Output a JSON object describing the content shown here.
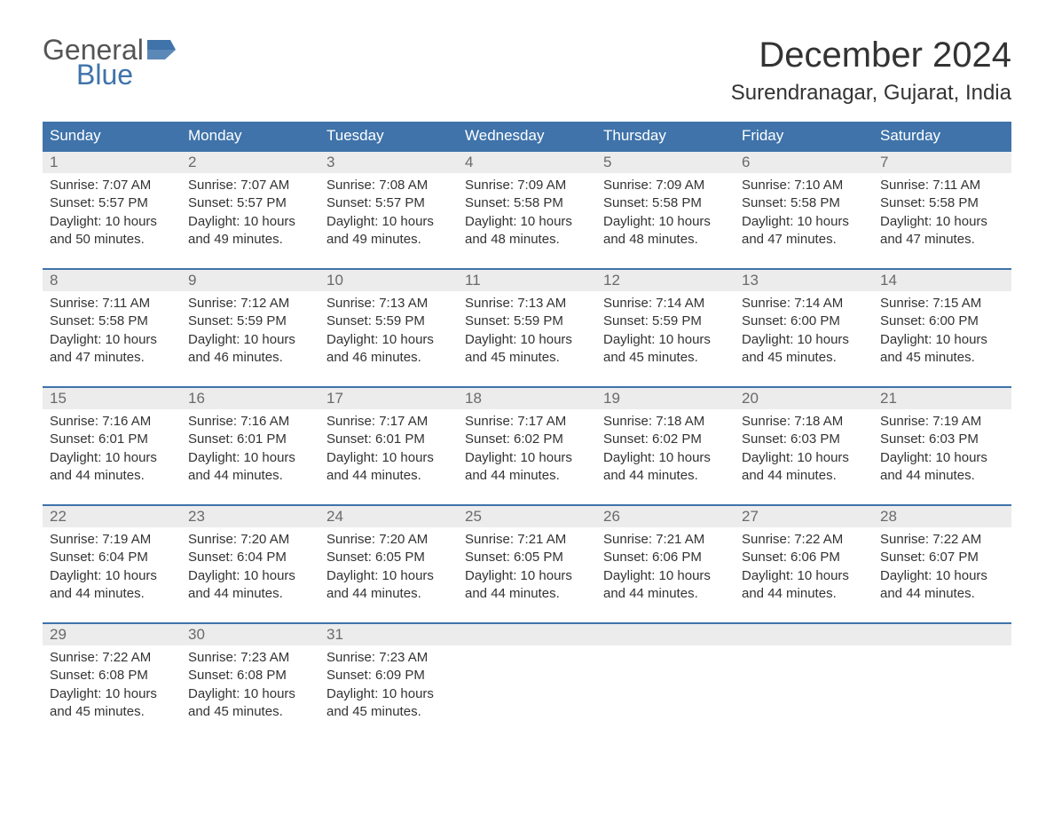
{
  "logo": {
    "text1": "General",
    "text2": "Blue"
  },
  "title": "December 2024",
  "location": "Surendranagar, Gujarat, India",
  "colors": {
    "header_bg": "#3f73aa",
    "header_text": "#ffffff",
    "daynum_bg": "#ececec",
    "daynum_text": "#6a6a6a",
    "body_text": "#333333",
    "rule": "#3f73aa",
    "logo_blue": "#3f73aa",
    "logo_gray": "#555555",
    "page_bg": "#ffffff"
  },
  "day_names": [
    "Sunday",
    "Monday",
    "Tuesday",
    "Wednesday",
    "Thursday",
    "Friday",
    "Saturday"
  ],
  "weeks": [
    [
      {
        "n": "1",
        "sr": "Sunrise: 7:07 AM",
        "ss": "Sunset: 5:57 PM",
        "d1": "Daylight: 10 hours",
        "d2": "and 50 minutes."
      },
      {
        "n": "2",
        "sr": "Sunrise: 7:07 AM",
        "ss": "Sunset: 5:57 PM",
        "d1": "Daylight: 10 hours",
        "d2": "and 49 minutes."
      },
      {
        "n": "3",
        "sr": "Sunrise: 7:08 AM",
        "ss": "Sunset: 5:57 PM",
        "d1": "Daylight: 10 hours",
        "d2": "and 49 minutes."
      },
      {
        "n": "4",
        "sr": "Sunrise: 7:09 AM",
        "ss": "Sunset: 5:58 PM",
        "d1": "Daylight: 10 hours",
        "d2": "and 48 minutes."
      },
      {
        "n": "5",
        "sr": "Sunrise: 7:09 AM",
        "ss": "Sunset: 5:58 PM",
        "d1": "Daylight: 10 hours",
        "d2": "and 48 minutes."
      },
      {
        "n": "6",
        "sr": "Sunrise: 7:10 AM",
        "ss": "Sunset: 5:58 PM",
        "d1": "Daylight: 10 hours",
        "d2": "and 47 minutes."
      },
      {
        "n": "7",
        "sr": "Sunrise: 7:11 AM",
        "ss": "Sunset: 5:58 PM",
        "d1": "Daylight: 10 hours",
        "d2": "and 47 minutes."
      }
    ],
    [
      {
        "n": "8",
        "sr": "Sunrise: 7:11 AM",
        "ss": "Sunset: 5:58 PM",
        "d1": "Daylight: 10 hours",
        "d2": "and 47 minutes."
      },
      {
        "n": "9",
        "sr": "Sunrise: 7:12 AM",
        "ss": "Sunset: 5:59 PM",
        "d1": "Daylight: 10 hours",
        "d2": "and 46 minutes."
      },
      {
        "n": "10",
        "sr": "Sunrise: 7:13 AM",
        "ss": "Sunset: 5:59 PM",
        "d1": "Daylight: 10 hours",
        "d2": "and 46 minutes."
      },
      {
        "n": "11",
        "sr": "Sunrise: 7:13 AM",
        "ss": "Sunset: 5:59 PM",
        "d1": "Daylight: 10 hours",
        "d2": "and 45 minutes."
      },
      {
        "n": "12",
        "sr": "Sunrise: 7:14 AM",
        "ss": "Sunset: 5:59 PM",
        "d1": "Daylight: 10 hours",
        "d2": "and 45 minutes."
      },
      {
        "n": "13",
        "sr": "Sunrise: 7:14 AM",
        "ss": "Sunset: 6:00 PM",
        "d1": "Daylight: 10 hours",
        "d2": "and 45 minutes."
      },
      {
        "n": "14",
        "sr": "Sunrise: 7:15 AM",
        "ss": "Sunset: 6:00 PM",
        "d1": "Daylight: 10 hours",
        "d2": "and 45 minutes."
      }
    ],
    [
      {
        "n": "15",
        "sr": "Sunrise: 7:16 AM",
        "ss": "Sunset: 6:01 PM",
        "d1": "Daylight: 10 hours",
        "d2": "and 44 minutes."
      },
      {
        "n": "16",
        "sr": "Sunrise: 7:16 AM",
        "ss": "Sunset: 6:01 PM",
        "d1": "Daylight: 10 hours",
        "d2": "and 44 minutes."
      },
      {
        "n": "17",
        "sr": "Sunrise: 7:17 AM",
        "ss": "Sunset: 6:01 PM",
        "d1": "Daylight: 10 hours",
        "d2": "and 44 minutes."
      },
      {
        "n": "18",
        "sr": "Sunrise: 7:17 AM",
        "ss": "Sunset: 6:02 PM",
        "d1": "Daylight: 10 hours",
        "d2": "and 44 minutes."
      },
      {
        "n": "19",
        "sr": "Sunrise: 7:18 AM",
        "ss": "Sunset: 6:02 PM",
        "d1": "Daylight: 10 hours",
        "d2": "and 44 minutes."
      },
      {
        "n": "20",
        "sr": "Sunrise: 7:18 AM",
        "ss": "Sunset: 6:03 PM",
        "d1": "Daylight: 10 hours",
        "d2": "and 44 minutes."
      },
      {
        "n": "21",
        "sr": "Sunrise: 7:19 AM",
        "ss": "Sunset: 6:03 PM",
        "d1": "Daylight: 10 hours",
        "d2": "and 44 minutes."
      }
    ],
    [
      {
        "n": "22",
        "sr": "Sunrise: 7:19 AM",
        "ss": "Sunset: 6:04 PM",
        "d1": "Daylight: 10 hours",
        "d2": "and 44 minutes."
      },
      {
        "n": "23",
        "sr": "Sunrise: 7:20 AM",
        "ss": "Sunset: 6:04 PM",
        "d1": "Daylight: 10 hours",
        "d2": "and 44 minutes."
      },
      {
        "n": "24",
        "sr": "Sunrise: 7:20 AM",
        "ss": "Sunset: 6:05 PM",
        "d1": "Daylight: 10 hours",
        "d2": "and 44 minutes."
      },
      {
        "n": "25",
        "sr": "Sunrise: 7:21 AM",
        "ss": "Sunset: 6:05 PM",
        "d1": "Daylight: 10 hours",
        "d2": "and 44 minutes."
      },
      {
        "n": "26",
        "sr": "Sunrise: 7:21 AM",
        "ss": "Sunset: 6:06 PM",
        "d1": "Daylight: 10 hours",
        "d2": "and 44 minutes."
      },
      {
        "n": "27",
        "sr": "Sunrise: 7:22 AM",
        "ss": "Sunset: 6:06 PM",
        "d1": "Daylight: 10 hours",
        "d2": "and 44 minutes."
      },
      {
        "n": "28",
        "sr": "Sunrise: 7:22 AM",
        "ss": "Sunset: 6:07 PM",
        "d1": "Daylight: 10 hours",
        "d2": "and 44 minutes."
      }
    ],
    [
      {
        "n": "29",
        "sr": "Sunrise: 7:22 AM",
        "ss": "Sunset: 6:08 PM",
        "d1": "Daylight: 10 hours",
        "d2": "and 45 minutes."
      },
      {
        "n": "30",
        "sr": "Sunrise: 7:23 AM",
        "ss": "Sunset: 6:08 PM",
        "d1": "Daylight: 10 hours",
        "d2": "and 45 minutes."
      },
      {
        "n": "31",
        "sr": "Sunrise: 7:23 AM",
        "ss": "Sunset: 6:09 PM",
        "d1": "Daylight: 10 hours",
        "d2": "and 45 minutes."
      },
      {
        "n": "",
        "sr": "",
        "ss": "",
        "d1": "",
        "d2": ""
      },
      {
        "n": "",
        "sr": "",
        "ss": "",
        "d1": "",
        "d2": ""
      },
      {
        "n": "",
        "sr": "",
        "ss": "",
        "d1": "",
        "d2": ""
      },
      {
        "n": "",
        "sr": "",
        "ss": "",
        "d1": "",
        "d2": ""
      }
    ]
  ]
}
